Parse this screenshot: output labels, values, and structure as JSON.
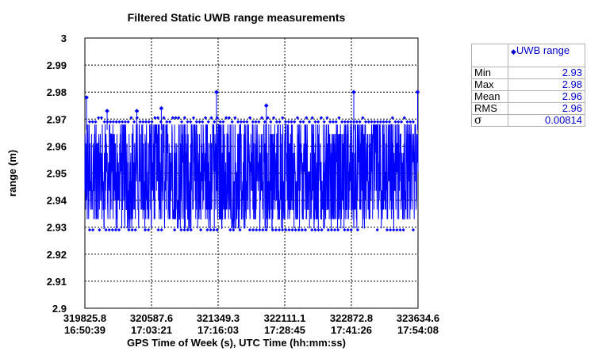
{
  "chart_data": {
    "type": "line",
    "title": "Filtered Static UWB range measurements",
    "xlabel": "GPS Time of Week (s), UTC Time (hh:mm:ss)",
    "ylabel": "range (m)",
    "ylim": [
      2.9,
      3.0
    ],
    "xlim": [
      319825.8,
      323634.6
    ],
    "grid": true,
    "y_ticks": [
      "2.9",
      "2.91",
      "2.92",
      "2.93",
      "2.94",
      "2.95",
      "2.96",
      "2.97",
      "2.98",
      "2.99",
      "3"
    ],
    "x_ticks": [
      {
        "gps": "319825.8",
        "utc": "16:50:39"
      },
      {
        "gps": "320587.6",
        "utc": "17:03:21"
      },
      {
        "gps": "321349.3",
        "utc": "17:16:03"
      },
      {
        "gps": "322111.1",
        "utc": "17:28:45"
      },
      {
        "gps": "322872.8",
        "utc": "17:41:26"
      },
      {
        "gps": "323634.6",
        "utc": "17:54:08"
      }
    ],
    "series": [
      {
        "name": "UWB range",
        "color": "#0000ff",
        "marker": "diamond",
        "range_min": 2.93,
        "typical_low": 2.935,
        "typical_high": 2.966,
        "range_max": 2.98,
        "spikes": [
          {
            "x": 319845,
            "y": 2.978
          },
          {
            "x": 320080,
            "y": 2.973
          },
          {
            "x": 320420,
            "y": 2.973
          },
          {
            "x": 320700,
            "y": 2.974
          },
          {
            "x": 321330,
            "y": 2.98
          },
          {
            "x": 321900,
            "y": 2.975
          },
          {
            "x": 322900,
            "y": 2.98
          },
          {
            "x": 323630,
            "y": 2.98
          }
        ]
      }
    ]
  },
  "legend": {
    "marker": "◆",
    "label": "UWB range"
  },
  "stats": [
    {
      "label": "Min",
      "value": "2.93"
    },
    {
      "label": "Max",
      "value": "2.98"
    },
    {
      "label": "Mean",
      "value": "2.96"
    },
    {
      "label": "RMS",
      "value": "2.96"
    },
    {
      "label": "σ",
      "value": "0.00814"
    }
  ]
}
